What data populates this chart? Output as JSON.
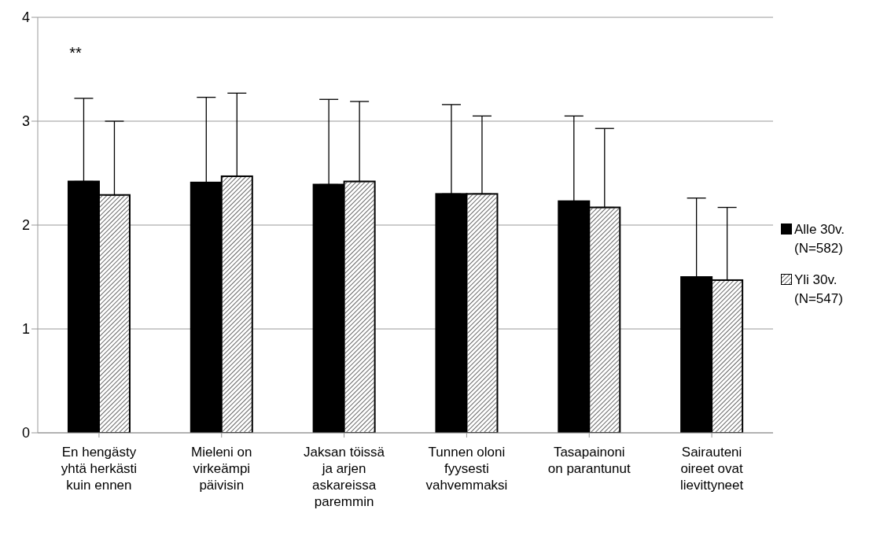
{
  "chart_data": {
    "type": "bar",
    "categories": [
      "En hengästy yhtä herkästi kuin ennen",
      "Mieleni on virkeämpi päivisin",
      "Jaksan töissä ja arjen askareissa paremmin",
      "Tunnen oloni fyysesti vahvemmaksi",
      "Tasapainoni on parantunut",
      "Sairauteni oireet ovat lievittyneet"
    ],
    "series": [
      {
        "name": "Alle 30v. (N=582)",
        "color": "#000000",
        "values": [
          2.42,
          2.41,
          2.39,
          2.3,
          2.23,
          1.5
        ],
        "errors": [
          [
            2.42,
            3.22
          ],
          [
            2.41,
            3.23
          ],
          [
            2.39,
            3.21
          ],
          [
            2.3,
            3.16
          ],
          [
            2.23,
            3.05
          ],
          [
            1.5,
            2.26
          ]
        ]
      },
      {
        "name": "Yli 30v. (N=547)",
        "color": "#ffffff",
        "values": [
          2.29,
          2.47,
          2.42,
          2.3,
          2.17,
          1.47
        ],
        "errors": [
          [
            2.29,
            3.0
          ],
          [
            2.47,
            3.27
          ],
          [
            2.42,
            3.19
          ],
          [
            2.3,
            3.05
          ],
          [
            2.17,
            2.93
          ],
          [
            1.47,
            2.17
          ]
        ]
      }
    ],
    "ylim": [
      0,
      4
    ],
    "yticks": [
      0,
      1,
      2,
      3,
      4
    ],
    "grid": "y",
    "legend": "right",
    "annotations": [
      "**"
    ]
  }
}
